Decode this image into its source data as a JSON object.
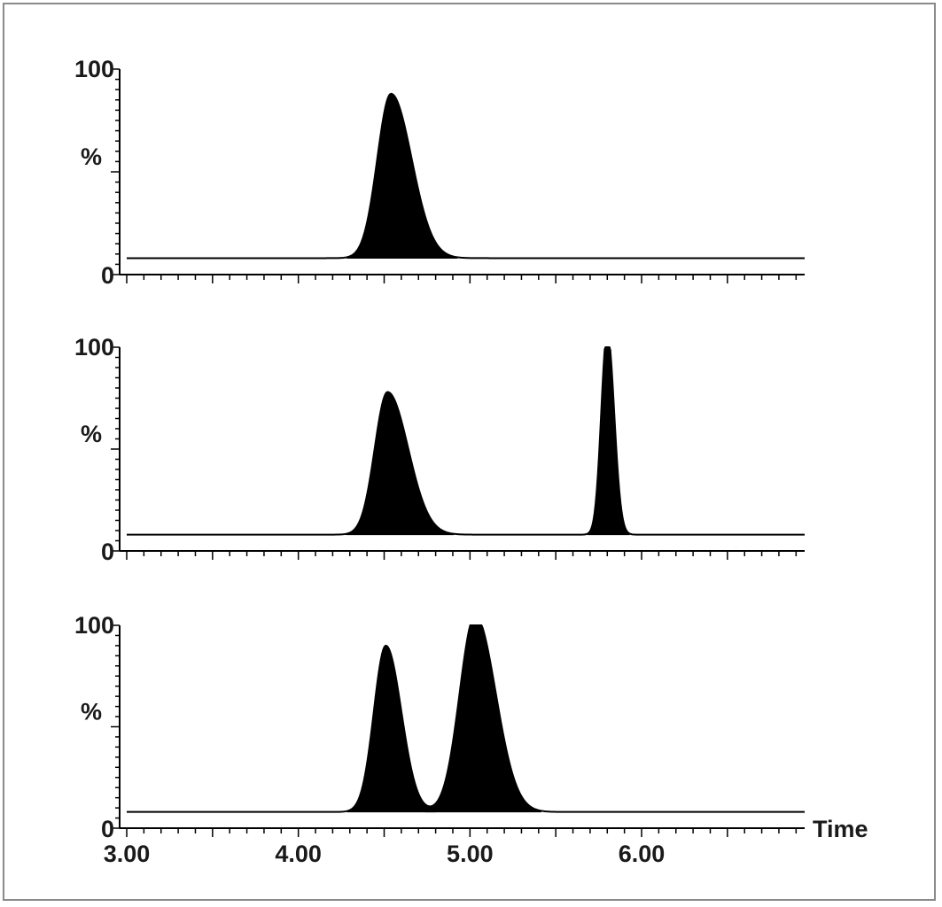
{
  "chart_data": {
    "type": "line",
    "xlabel": "Time",
    "xlim": [
      3.0,
      6.95
    ],
    "x_ticks": [
      "3.00",
      "4.00",
      "5.00",
      "6.00"
    ],
    "x_tick_values": [
      3.0,
      4.0,
      5.0,
      6.0
    ],
    "panels": [
      {
        "ylabel": "%",
        "ylim": [
          0,
          100
        ],
        "y_ticks": [
          "100",
          "0"
        ],
        "baseline": 8,
        "peaks": [
          {
            "rt": 4.54,
            "height": 80,
            "sigma": 0.08,
            "tail": 0.12
          }
        ]
      },
      {
        "ylabel": "%",
        "ylim": [
          0,
          100
        ],
        "y_ticks": [
          "100",
          "0"
        ],
        "baseline": 8,
        "peaks": [
          {
            "rt": 4.52,
            "height": 70,
            "sigma": 0.075,
            "tail": 0.12
          },
          {
            "rt": 5.8,
            "height": 100,
            "sigma": 0.035,
            "tail": 0.04
          }
        ]
      },
      {
        "ylabel": "%",
        "ylim": [
          0,
          100
        ],
        "y_ticks": [
          "100",
          "0"
        ],
        "baseline": 8,
        "peaks": [
          {
            "rt": 4.51,
            "height": 82,
            "sigma": 0.07,
            "tail": 0.09
          },
          {
            "rt": 5.03,
            "height": 97,
            "sigma": 0.09,
            "tail": 0.12
          }
        ]
      }
    ]
  }
}
